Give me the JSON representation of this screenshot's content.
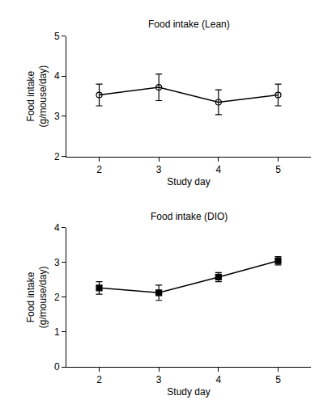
{
  "chart_data": [
    {
      "type": "line",
      "title": "Food intake (Lean)",
      "x_label": "Study day",
      "y_label": "Food intake\n(g/mouse/day)",
      "x": [
        2,
        3,
        4,
        5
      ],
      "series": [
        {
          "color": "#000000",
          "marker": "circle-open",
          "line_style": "solid",
          "values": [
            3.53,
            3.72,
            3.35,
            3.53
          ],
          "errors": [
            0.27,
            0.33,
            0.31,
            0.27
          ]
        }
      ],
      "xlim": [
        1.45,
        5.55
      ],
      "xticks": [
        2,
        3,
        4,
        5
      ],
      "ylim": [
        2,
        5
      ],
      "yticks": [
        2,
        3,
        4,
        5
      ],
      "grid": false
    },
    {
      "type": "line",
      "title": "Food intake (DIO)",
      "x_label": "Study day",
      "y_label": "Food intake\n(g/mouse/day)",
      "x": [
        2,
        3,
        4,
        5
      ],
      "series": [
        {
          "color": "#000000",
          "marker": "square",
          "line_style": "solid",
          "values": [
            2.27,
            2.13,
            2.58,
            3.05
          ],
          "errors": [
            0.18,
            0.22,
            0.13,
            0.12
          ]
        }
      ],
      "xlim": [
        1.45,
        5.55
      ],
      "xticks": [
        2,
        3,
        4,
        5
      ],
      "ylim": [
        0,
        4
      ],
      "yticks": [
        0,
        1,
        2,
        3,
        4
      ],
      "grid": false
    }
  ]
}
